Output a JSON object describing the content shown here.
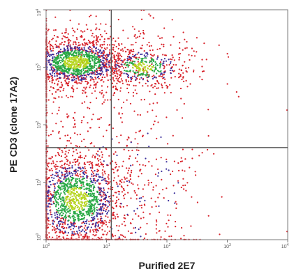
{
  "chart_data": {
    "type": "scatter",
    "title": "",
    "xlabel": "Purified 2E7",
    "ylabel": "PE CD3 (clone 17A2)",
    "x_scale": "log",
    "y_scale": "log",
    "xlim": [
      1,
      10000
    ],
    "ylim": [
      1,
      10000
    ],
    "x_ticks": [
      {
        "value": 1,
        "exp": "0"
      },
      {
        "value": 10,
        "exp": "1"
      },
      {
        "value": 100,
        "exp": "2"
      },
      {
        "value": 1000,
        "exp": "3"
      },
      {
        "value": 10000,
        "exp": "4"
      }
    ],
    "y_ticks": [
      {
        "value": 1,
        "exp": "0"
      },
      {
        "value": 10,
        "exp": "1"
      },
      {
        "value": 100,
        "exp": "2"
      },
      {
        "value": 1000,
        "exp": "3"
      },
      {
        "value": 10000,
        "exp": "4"
      }
    ],
    "quadrant_gates": {
      "x": 12,
      "y": 40
    },
    "grid": false,
    "density_colors": [
      "#d8222a",
      "#3b2f9c",
      "#27a844",
      "#b6d51f"
    ],
    "populations": [
      {
        "x_center": 3.2,
        "y_center": 1200,
        "x_spread_decades": 0.38,
        "y_spread_decades": 0.2,
        "count": 1700
      },
      {
        "x_center": 40,
        "y_center": 1000,
        "x_spread_decades": 0.32,
        "y_spread_decades": 0.16,
        "count": 450
      },
      {
        "x_center": 3.2,
        "y_center": 5,
        "x_spread_decades": 0.36,
        "y_spread_decades": 0.38,
        "count": 1900
      },
      {
        "x_center": 25,
        "y_center": 8,
        "x_spread_decades": 0.55,
        "y_spread_decades": 0.7,
        "count": 180
      }
    ]
  }
}
